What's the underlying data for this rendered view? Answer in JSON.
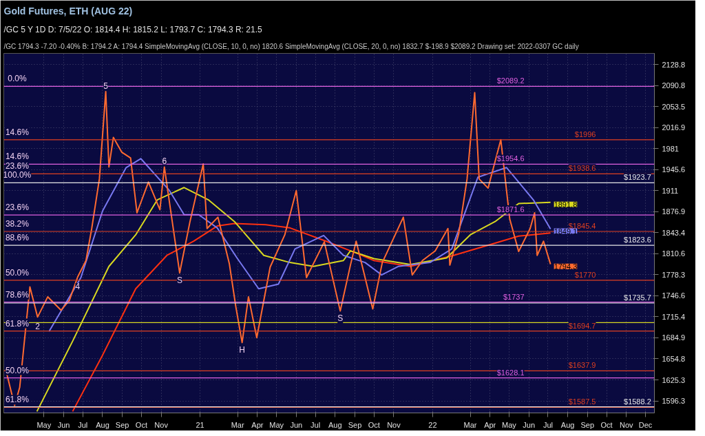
{
  "chart_data": {
    "type": "line",
    "title": "Gold Futures, ETH (AUG 22)",
    "subtitle": "/GC 5 Y 1D   D: 7/5/22   O: 1814.4   H: 1815.2   L: 1793.7   C: 1794.3   R: 21.5",
    "annotations": [
      "/GC",
      "1794.3",
      "-7.20",
      "-0.40%",
      "B: 1794.2",
      "A: 1794.4",
      "SimpleMovingAvg (CLOSE, 10, 0, no) 1820.6",
      "SimpleMovingAvg (CLOSE, 20, 0, no) 1832.7",
      "$-198.9",
      "$2089.2",
      "Drawing set: 2022-0307",
      "GC daily",
      {
        "text": "5",
        "x": "2020-08-06",
        "y": 2080
      },
      {
        "text": "6",
        "x": "2020-11-06",
        "y": 1950
      },
      {
        "text": "4",
        "x": "2020-06-23",
        "y": 1775
      },
      {
        "text": "2",
        "x": "2020-04-21",
        "y": 1715
      },
      {
        "text": "S",
        "x": "2020-11-30",
        "y": 1781
      },
      {
        "text": "H",
        "x": "2021-03-08",
        "y": 1678
      },
      {
        "text": "S",
        "x": "2021-08-09",
        "y": 1724
      },
      {
        "text": "0.0%",
        "x": "2020-03-20",
        "y": 2089.2
      },
      {
        "text": "14.6%",
        "x": "2020-03-20",
        "y": 1996
      },
      {
        "text": "14.6%",
        "x": "2020-03-20",
        "y": 1954.6
      },
      {
        "text": "23.6%",
        "x": "2020-03-20",
        "y": 1938.6
      },
      {
        "text": "100.0%",
        "x": "2020-03-20",
        "y": 1923.7
      },
      {
        "text": "23.6%",
        "x": "2020-03-20",
        "y": 1871.6
      },
      {
        "text": "38.2%",
        "x": "2020-03-20",
        "y": 1845.4
      },
      {
        "text": "88.6%",
        "x": "2020-03-20",
        "y": 1823.6
      },
      {
        "text": "50.0%",
        "x": "2020-03-20",
        "y": 1770
      },
      {
        "text": "78.6%",
        "x": "2020-03-20",
        "y": 1737
      },
      {
        "text": "61.8%",
        "x": "2020-03-20",
        "y": 1694.7
      },
      {
        "text": "50.0%",
        "x": "2020-03-20",
        "y": 1628.1
      },
      {
        "text": "61.8%",
        "x": "2020-03-20",
        "y": 1587.5
      }
    ],
    "xlim": [
      "2020-02-28",
      "2022-12-15"
    ],
    "xticks": [
      {
        "value": "2020-05-01",
        "label": "May"
      },
      {
        "value": "2020-06-01",
        "label": "Jun"
      },
      {
        "value": "2020-07-01",
        "label": "Jul"
      },
      {
        "value": "2020-08-01",
        "label": "Aug"
      },
      {
        "value": "2020-09-01",
        "label": "Sep"
      },
      {
        "value": "2020-10-01",
        "label": "Oct"
      },
      {
        "value": "2020-11-01",
        "label": "Nov"
      },
      {
        "value": "2021-01-01",
        "label": "21"
      },
      {
        "value": "2021-03-01",
        "label": "Mar"
      },
      {
        "value": "2021-04-01",
        "label": "Apr"
      },
      {
        "value": "2021-05-01",
        "label": "May"
      },
      {
        "value": "2021-06-01",
        "label": "Jun"
      },
      {
        "value": "2021-07-01",
        "label": "Jul"
      },
      {
        "value": "2021-08-01",
        "label": "Aug"
      },
      {
        "value": "2021-09-01",
        "label": "Sep"
      },
      {
        "value": "2021-10-01",
        "label": "Oct"
      },
      {
        "value": "2021-11-01",
        "label": "Nov"
      },
      {
        "value": "2022-01-01",
        "label": "22"
      },
      {
        "value": "2022-03-01",
        "label": "Mar"
      },
      {
        "value": "2022-04-01",
        "label": "Apr"
      },
      {
        "value": "2022-05-01",
        "label": "May"
      },
      {
        "value": "2022-06-01",
        "label": "Jun"
      },
      {
        "value": "2022-07-01",
        "label": "Jul"
      },
      {
        "value": "2022-08-01",
        "label": "Aug"
      },
      {
        "value": "2022-09-01",
        "label": "Sep"
      },
      {
        "value": "2022-10-01",
        "label": "Oct"
      },
      {
        "value": "2022-11-01",
        "label": "Nov"
      },
      {
        "value": "2022-12-01",
        "label": "Dec"
      }
    ],
    "ylim": [
      1580,
      2149
    ],
    "yticks": [
      1596.3,
      1625.3,
      1654.8,
      1684.9,
      1715.4,
      1746.6,
      1778.3,
      1810.6,
      1843.4,
      1876.9,
      1911,
      1945.6,
      1981,
      2016.9,
      2053.5,
      2090.8,
      2128.8
    ],
    "log": true,
    "grid": true,
    "series": [
      {
        "color": "#ff3010",
        "x": [
          "2020-06-15",
          "2020-08-01",
          "2020-09-22",
          "2020-11-10",
          "2020-12-22",
          "2021-01-28",
          "2021-02-24",
          "2021-04-14",
          "2021-05-22",
          "2021-07-18",
          "2021-09-07",
          "2021-10-01",
          "2021-11-27",
          "2022-02-03",
          "2022-04-09",
          "2022-05-16",
          "2022-07-05"
        ],
        "values": [
          1582,
          1660,
          1757,
          1808,
          1830,
          1854,
          1858,
          1856,
          1851,
          1830,
          1810,
          1800,
          1791,
          1808,
          1827,
          1838,
          1843
        ]
      },
      {
        "color": "#d8d820",
        "x": [
          "2020-04-20",
          "2020-06-15",
          "2020-08-11",
          "2020-09-22",
          "2020-10-26",
          "2020-12-07",
          "2021-01-14",
          "2021-02-24",
          "2021-04-11",
          "2021-05-22",
          "2021-06-28",
          "2021-08-14",
          "2021-08-25",
          "2021-10-01",
          "2021-11-27",
          "2022-01-23",
          "2022-03-01",
          "2022-04-09",
          "2022-05-16",
          "2022-07-05"
        ],
        "values": [
          1582,
          1680,
          1791,
          1840,
          1896,
          1916,
          1896,
          1861,
          1808,
          1797,
          1791,
          1800,
          1815,
          1803,
          1794,
          1804,
          1840,
          1861,
          1890,
          1891.8
        ],
        "value_labels": [
          null,
          null,
          null,
          null,
          null,
          null,
          null,
          null,
          null,
          null,
          null,
          null,
          null,
          null,
          null,
          null,
          null,
          null,
          null,
          "1891.8"
        ]
      },
      {
        "color": "#7878f0",
        "x": [
          "2020-05-09",
          "2020-06-28",
          "2020-08-01",
          "2020-09-07",
          "2020-09-30",
          "2020-11-14",
          "2020-12-07",
          "2020-12-30",
          "2021-01-28",
          "2021-02-28",
          "2021-04-03",
          "2021-05-04",
          "2021-05-30",
          "2021-07-14",
          "2021-08-14",
          "2021-09-17",
          "2021-10-13",
          "2021-11-08",
          "2021-12-28",
          "2022-01-31",
          "2022-03-13",
          "2022-04-27",
          "2022-06-08",
          "2022-07-05"
        ],
        "values": [
          1694,
          1774,
          1878,
          1949,
          1964,
          1911,
          1872,
          1872,
          1851,
          1804,
          1757,
          1764,
          1818,
          1839,
          1808,
          1797,
          1778,
          1791,
          1797,
          1818,
          1933,
          1949,
          1896,
          1849.1
        ],
        "value_labels": [
          null,
          null,
          null,
          null,
          null,
          null,
          null,
          null,
          null,
          null,
          null,
          null,
          null,
          null,
          null,
          null,
          null,
          null,
          null,
          null,
          null,
          null,
          null,
          "1849.1"
        ]
      },
      {
        "color": "#ff6a30",
        "x": [
          "2020-03-02",
          "2020-03-16",
          "2020-03-24",
          "2020-04-09",
          "2020-04-21",
          "2020-05-07",
          "2020-05-28",
          "2020-06-10",
          "2020-06-23",
          "2020-07-06",
          "2020-07-15",
          "2020-07-27",
          "2020-08-06",
          "2020-08-11",
          "2020-08-18",
          "2020-08-31",
          "2020-09-14",
          "2020-09-24",
          "2020-10-12",
          "2020-10-30",
          "2020-11-06",
          "2020-11-30",
          "2020-12-16",
          "2021-01-06",
          "2021-01-12",
          "2021-01-29",
          "2021-02-16",
          "2021-02-26",
          "2021-03-08",
          "2021-03-18",
          "2021-03-31",
          "2021-04-21",
          "2021-05-14",
          "2021-06-01",
          "2021-06-17",
          "2021-07-15",
          "2021-08-09",
          "2021-08-25",
          "2021-09-03",
          "2021-09-29",
          "2021-10-14",
          "2021-11-16",
          "2021-11-30",
          "2021-12-16",
          "2022-01-05",
          "2022-01-25",
          "2022-01-28",
          "2022-02-11",
          "2022-02-24",
          "2022-03-08",
          "2022-03-15",
          "2022-03-29",
          "2022-04-18",
          "2022-05-02",
          "2022-05-16",
          "2022-06-03",
          "2022-06-10",
          "2022-06-14",
          "2022-06-24",
          "2022-07-05"
        ],
        "values": [
          1640,
          1590,
          1615,
          1760,
          1715,
          1745,
          1725,
          1740,
          1775,
          1800,
          1850,
          1930,
          2080,
          1950,
          2000,
          1975,
          1965,
          1875,
          1925,
          1880,
          1950,
          1781,
          1860,
          1955,
          1850,
          1868,
          1795,
          1731,
          1678,
          1745,
          1685,
          1790,
          1840,
          1911,
          1774,
          1829,
          1724,
          1793,
          1830,
          1727,
          1797,
          1868,
          1778,
          1800,
          1815,
          1850,
          1793,
          1842,
          1930,
          2078,
          1930,
          1915,
          1996,
          1865,
          1814,
          1850,
          1875,
          1808,
          1830,
          1794.3
        ],
        "value_labels": [
          null,
          null,
          null,
          null,
          null,
          null,
          null,
          null,
          null,
          null,
          null,
          null,
          null,
          null,
          null,
          null,
          null,
          null,
          null,
          null,
          null,
          null,
          null,
          null,
          null,
          null,
          null,
          null,
          null,
          null,
          null,
          null,
          null,
          null,
          null,
          null,
          null,
          null,
          null,
          null,
          null,
          null,
          null,
          null,
          null,
          null,
          null,
          null,
          null,
          null,
          null,
          null,
          null,
          null,
          null,
          null,
          null,
          null,
          null,
          "1794.3"
        ]
      }
    ],
    "ref_lines": [
      {
        "axis": "y",
        "value": 2089.2,
        "label": "$2089.2",
        "color": "#e060e0"
      },
      {
        "axis": "y",
        "value": 1954.6,
        "label": "$1954.6",
        "color": "#e060e0"
      },
      {
        "axis": "y",
        "value": 1871.6,
        "label": "$1871.6",
        "color": "#e060e0"
      },
      {
        "axis": "y",
        "value": 1737,
        "label": "$1737",
        "color": "#e060e0"
      },
      {
        "axis": "y",
        "value": 1628.1,
        "label": "$1628.1",
        "color": "#e060e0"
      },
      {
        "axis": "y",
        "value": 1996,
        "label": "$1996",
        "color": "#e04020"
      },
      {
        "axis": "y",
        "value": 1938.6,
        "label": "$1938.6",
        "color": "#e04020"
      },
      {
        "axis": "y",
        "value": 1845.4,
        "label": "$1845.4",
        "color": "#e04020"
      },
      {
        "axis": "y",
        "value": 1770,
        "label": "$1770",
        "color": "#e04020"
      },
      {
        "axis": "y",
        "value": 1694.7,
        "label": "$1694.7",
        "color": "#e04020"
      },
      {
        "axis": "y",
        "value": 1637.9,
        "label": "$1637.9",
        "color": "#e04020"
      },
      {
        "axis": "y",
        "value": 1587.5,
        "label": "$1587.5",
        "color": "#e04020"
      },
      {
        "axis": "y",
        "value": 1923.7,
        "label": "$1923.7",
        "color": "#e8e8e8"
      },
      {
        "axis": "y",
        "value": 1823.6,
        "label": "$1823.6",
        "color": "#e8e8e8"
      },
      {
        "axis": "y",
        "value": 1735.7,
        "label": "$1735.7",
        "color": "#e8e8e8"
      },
      {
        "axis": "y",
        "value": 1588.2,
        "label": "$1588.2",
        "color": "#e8e8e8"
      },
      {
        "axis": "y",
        "value": 1707,
        "label": null,
        "color": "#d8d820"
      }
    ]
  }
}
